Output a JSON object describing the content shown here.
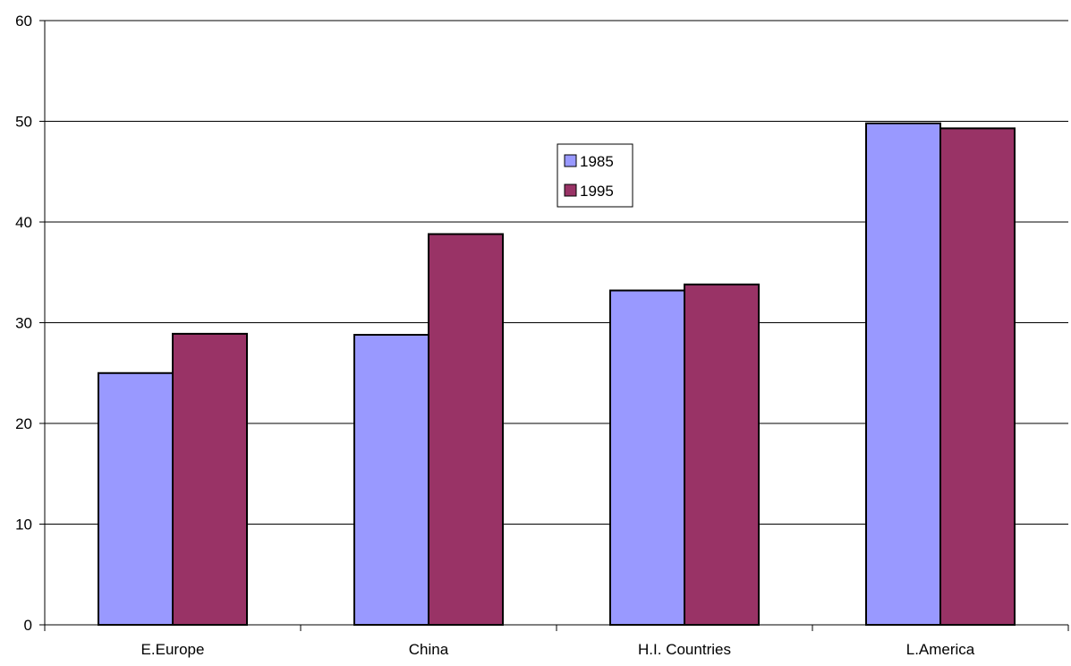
{
  "chart_data": {
    "type": "bar",
    "title": "",
    "xlabel": "",
    "ylabel": "",
    "categories": [
      "E.Europe",
      "China",
      "H.I. Countries",
      "L.America"
    ],
    "series": [
      {
        "name": "1985",
        "values": [
          25.0,
          28.8,
          33.2,
          49.8
        ],
        "color": "#9999FF"
      },
      {
        "name": "1995",
        "values": [
          28.9,
          38.8,
          33.8,
          49.3
        ],
        "color": "#993366"
      }
    ],
    "ylim": [
      0,
      60
    ],
    "yticks": [
      "0",
      "10",
      "20",
      "30",
      "40",
      "50",
      "60"
    ],
    "grid": true,
    "legend_position": "center-top"
  }
}
